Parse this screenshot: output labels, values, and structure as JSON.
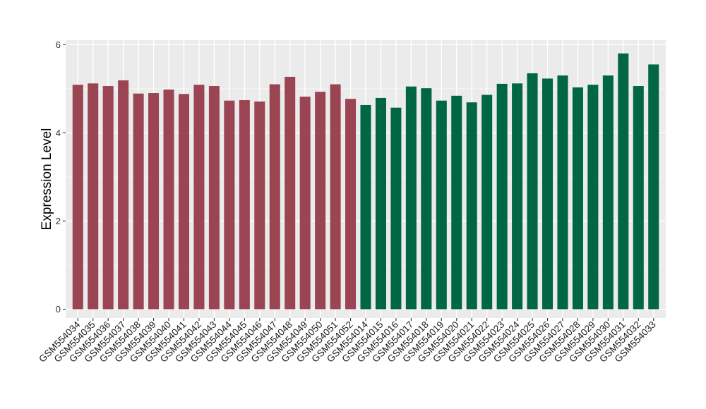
{
  "chart_data": {
    "type": "bar",
    "title": "",
    "xlabel": "",
    "ylabel": "Expression Level",
    "ylim": [
      -0.2,
      6.1
    ],
    "yticks": [
      0,
      2,
      4,
      6
    ],
    "grid": true,
    "legend": "none",
    "categories": [
      "GSM554034",
      "GSM554035",
      "GSM554036",
      "GSM554037",
      "GSM554038",
      "GSM554039",
      "GSM554040",
      "GSM554041",
      "GSM554042",
      "GSM554043",
      "GSM554044",
      "GSM554045",
      "GSM554046",
      "GSM554047",
      "GSM554048",
      "GSM554049",
      "GSM554050",
      "GSM554051",
      "GSM554052",
      "GSM554014",
      "GSM554015",
      "GSM554016",
      "GSM554017",
      "GSM554018",
      "GSM554019",
      "GSM554020",
      "GSM554021",
      "GSM554022",
      "GSM554023",
      "GSM554024",
      "GSM554025",
      "GSM554026",
      "GSM554027",
      "GSM554028",
      "GSM554029",
      "GSM554030",
      "GSM554031",
      "GSM554032",
      "GSM554033"
    ],
    "values": [
      5.09,
      5.12,
      5.06,
      5.19,
      4.89,
      4.9,
      4.98,
      4.88,
      5.09,
      5.06,
      4.73,
      4.74,
      4.71,
      5.1,
      5.27,
      4.82,
      4.93,
      5.1,
      4.77,
      4.63,
      4.79,
      4.57,
      5.05,
      5.01,
      4.73,
      4.84,
      4.69,
      4.86,
      5.11,
      5.12,
      5.35,
      5.23,
      5.3,
      5.03,
      5.09,
      5.3,
      5.8,
      5.06,
      5.55
    ],
    "group_colors": [
      "#9b4452",
      "#006643"
    ],
    "group_sizes": [
      19,
      20
    ]
  }
}
